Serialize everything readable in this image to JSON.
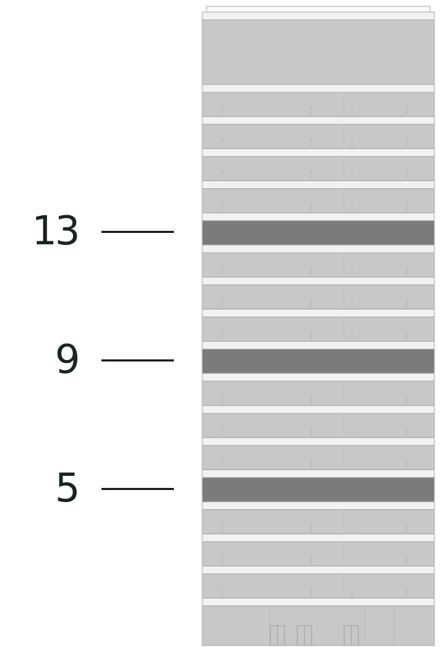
{
  "colors": {
    "facade": "#c8c9c7",
    "highlight": "#7a7c79",
    "slab": "#f2f2f0",
    "line": "#a9aba9",
    "text": "#1a2324"
  },
  "building": {
    "floor_count": 17,
    "highlighted_floors": [
      5,
      9,
      13
    ]
  },
  "labels": [
    {
      "floor": 13,
      "text": "13"
    },
    {
      "floor": 9,
      "text": "9"
    },
    {
      "floor": 5,
      "text": "5"
    }
  ]
}
